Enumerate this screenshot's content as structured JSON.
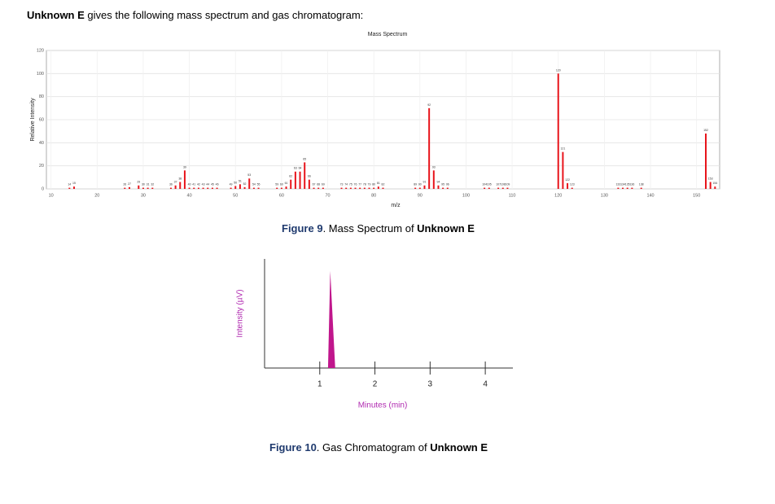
{
  "heading": {
    "bold": "Unknown E",
    "rest": " gives the following mass spectrum and gas chromatogram:"
  },
  "chart_data": [
    {
      "type": "bar",
      "title": "Mass Spectrum",
      "x_label": "m/z",
      "y_label": "Relative Intensity",
      "x": [
        14,
        15,
        26,
        27,
        29,
        30,
        31,
        32,
        36,
        37,
        38,
        39,
        40,
        41,
        42,
        43,
        44,
        45,
        46,
        49,
        50,
        51,
        52,
        53,
        54,
        55,
        59,
        60,
        61,
        62,
        63,
        64,
        65,
        66,
        67,
        68,
        69,
        73,
        74,
        75,
        76,
        77,
        78,
        79,
        80,
        81,
        82,
        89,
        90,
        91,
        92,
        93,
        94,
        95,
        96,
        104,
        105,
        107,
        108,
        109,
        120,
        121,
        122,
        123,
        133,
        134,
        135,
        136,
        138,
        152,
        153,
        154
      ],
      "values": [
        1,
        2,
        1,
        1.5,
        3,
        1,
        1,
        1,
        1,
        3,
        6,
        16,
        1,
        1,
        1,
        1,
        1,
        1,
        1,
        1,
        2.5,
        4,
        1.5,
        9,
        1,
        1,
        1,
        1,
        2,
        8,
        15,
        15,
        23,
        8,
        1,
        1,
        1,
        1,
        1,
        1,
        1,
        1,
        1,
        1,
        1,
        2,
        1,
        1,
        1,
        3,
        70,
        16,
        3,
        1,
        1,
        1,
        1,
        1,
        1,
        1,
        100,
        32,
        5,
        1,
        1,
        1,
        1,
        1,
        1,
        48,
        6,
        2
      ],
      "color": "#e8141b",
      "xlim": [
        9,
        155
      ],
      "xticks": [
        10,
        20,
        30,
        40,
        50,
        60,
        70,
        80,
        90,
        100,
        110,
        120,
        130,
        140,
        150
      ],
      "ylim": [
        0,
        120
      ],
      "yticks": [
        0,
        20,
        40,
        60,
        80,
        100,
        120
      ],
      "grid": true
    },
    {
      "type": "area",
      "x_label": "Minutes (min)",
      "y_label": "Intensity (µV)",
      "x": [
        1.15,
        1.19,
        1.28
      ],
      "values": [
        0,
        0.89,
        0
      ],
      "color": "#c0168c",
      "label_color": "#b02ab0",
      "xlim": [
        0,
        4.5
      ],
      "xticks": [
        1,
        2,
        3,
        4
      ],
      "ylim": [
        0,
        1
      ],
      "grid": false
    }
  ],
  "captions": [
    {
      "figure": "Figure 9",
      "text": ". Mass Spectrum of ",
      "bold": "Unknown E"
    },
    {
      "figure": "Figure 10",
      "text": ". Gas Chromatogram of ",
      "bold": "Unknown E"
    }
  ]
}
